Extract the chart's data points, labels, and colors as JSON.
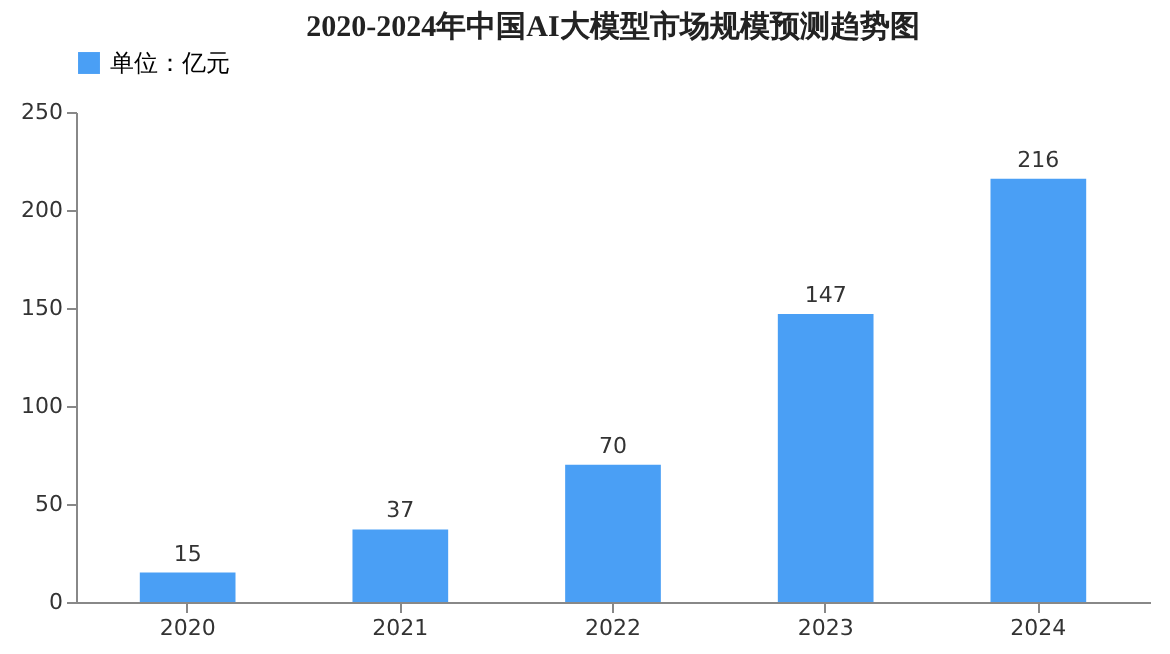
{
  "chart_data": {
    "type": "bar",
    "title": "2020-2024年中国AI大模型市场规模预测趋势图",
    "categories": [
      "2020",
      "2021",
      "2022",
      "2023",
      "2024"
    ],
    "series": [
      {
        "name": "单位：亿元",
        "color": "#4a9ff5",
        "values": [
          15,
          37,
          70,
          147,
          216
        ]
      }
    ],
    "ylim": [
      0,
      250
    ],
    "yticks": [
      0,
      50,
      100,
      150,
      200,
      250
    ],
    "grid": false,
    "legend": "top",
    "data_labels": true
  }
}
